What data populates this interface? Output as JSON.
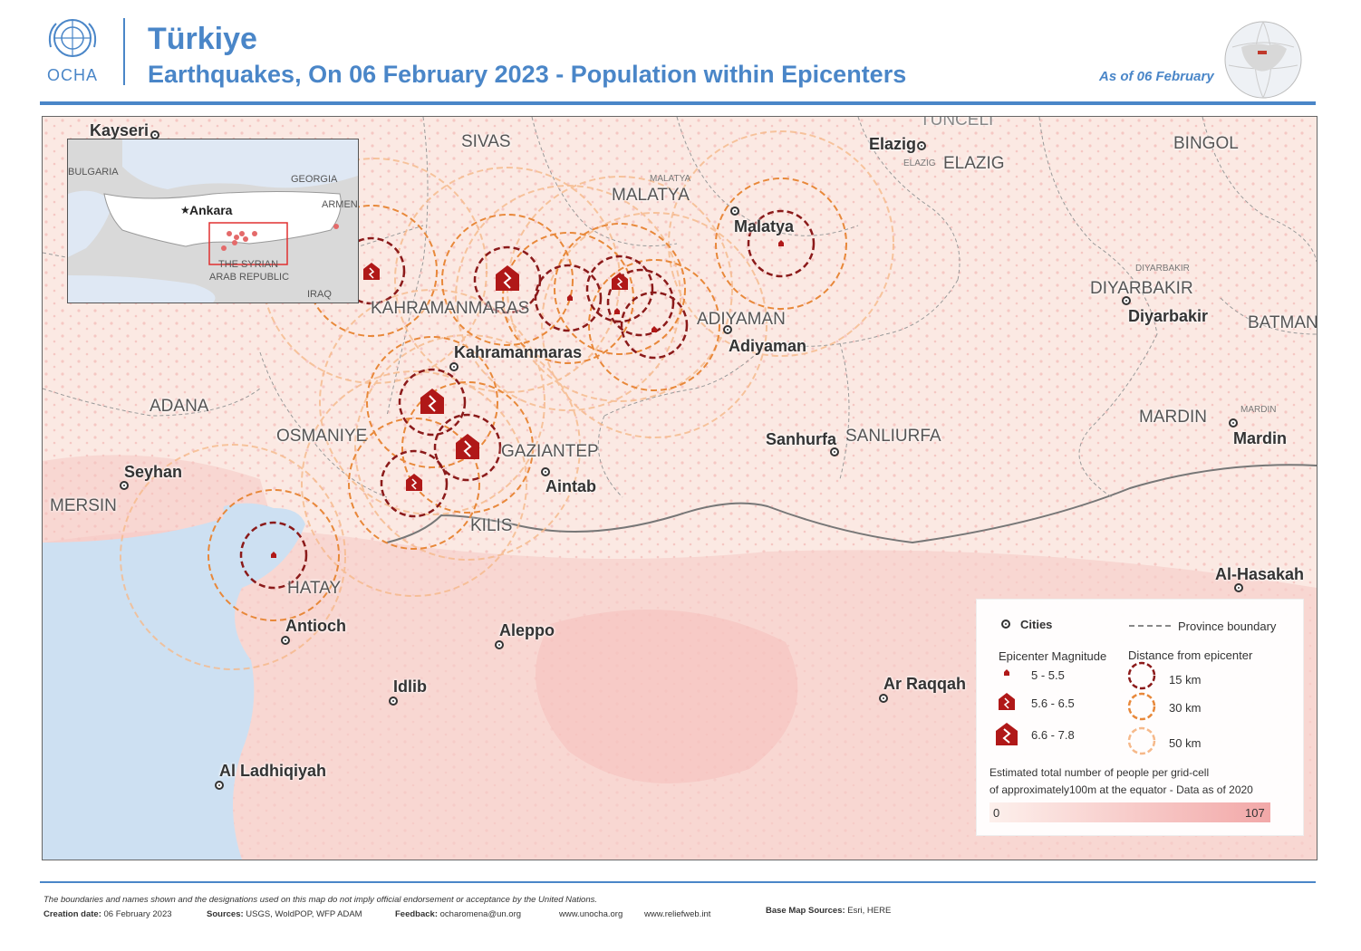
{
  "header": {
    "org": "OCHA",
    "title": "Türkiye",
    "subtitle": "Earthquakes, On 06 February 2023 - Population within Epicenters",
    "as_of": "As of 06 February"
  },
  "provinces": [
    "SIVAS",
    "MALATYA",
    "ELAZIG",
    "BINGOL",
    "TUNCELI",
    "KAHRAMANMARAS",
    "ADIYAMAN",
    "DIYARBAKIR",
    "BATMAN",
    "ADANA",
    "OSMANIYE",
    "GAZIANTEP",
    "SANLIURFA",
    "MARDIN",
    "MERSIN",
    "KILIS",
    "HATAY"
  ],
  "cities": [
    "Kayseri",
    "Elazig",
    "Malatya",
    "Diyarbakir",
    "Kahramanmaras",
    "Adiyaman",
    "Sanhurfa",
    "Mardin",
    "Seyhan",
    "Aintab",
    "Antioch",
    "Aleppo",
    "Idlib",
    "Ar Raqqah",
    "Al-Hasakah",
    "Al Ladhiqiyah"
  ],
  "small_labels": [
    "MALATYA",
    "ELAZIG",
    "DIYARBAKIR",
    "MARDIN"
  ],
  "inset": {
    "capital": "Ankara",
    "labels": [
      "BULGARIA",
      "GEORGIA",
      "ARMENIA",
      "THE SYRIAN",
      "ARAB REPUBLIC",
      "IRAQ"
    ]
  },
  "legend": {
    "cities": "Cities",
    "province_boundary": "Province boundary",
    "magnitude_title": "Epicenter Magnitude",
    "magnitude_classes": [
      "5 - 5.5",
      "5.6 - 6.5",
      "6.6 - 7.8"
    ],
    "distance_title": "Distance from epicenter",
    "distances": [
      "15 km",
      "30 km",
      "50 km"
    ],
    "population_note_1": "Estimated total number of people per grid-cell",
    "population_note_2": "of approximately100m at the equator - Data as of 2020",
    "scale_min": "0",
    "scale_max": "107"
  },
  "epicenters": [
    {
      "magnitude_class": "5.6 - 6.5"
    },
    {
      "magnitude_class": "6.6 - 7.8"
    },
    {
      "magnitude_class": "5 - 5.5"
    },
    {
      "magnitude_class": "5.6 - 6.5"
    },
    {
      "magnitude_class": "5 - 5.5"
    },
    {
      "magnitude_class": "5 - 5.5"
    },
    {
      "magnitude_class": "6.6 - 7.8"
    },
    {
      "magnitude_class": "6.6 - 7.8"
    },
    {
      "magnitude_class": "5.6 - 6.5"
    },
    {
      "magnitude_class": "5 - 5.5"
    },
    {
      "magnitude_class": "5 - 5.5"
    }
  ],
  "colors": {
    "accent": "#4a86c8",
    "ring_15km": "#8b1a1a",
    "ring_30km": "#e8883a",
    "ring_50km": "#f6b98a",
    "epicenter": "#b01818",
    "population_low": "#fdf0ec",
    "population_high": "#f2a8a8"
  },
  "footer": {
    "disclaimer": "The boundaries and names shown and the designations used on this map do not imply official endorsement or acceptance by the United Nations.",
    "creation_label": "Creation date:",
    "creation_value": "06 February 2023",
    "sources_label": "Sources:",
    "sources_value": "USGS, WoldPOP, WFP ADAM",
    "feedback_label": "Feedback:",
    "feedback_email": "ocharomena@un.org",
    "site_1": "www.unocha.org",
    "site_2": "www.reliefweb.int",
    "basemap_label": "Base Map Sources:",
    "basemap_value": "Esri, HERE"
  }
}
